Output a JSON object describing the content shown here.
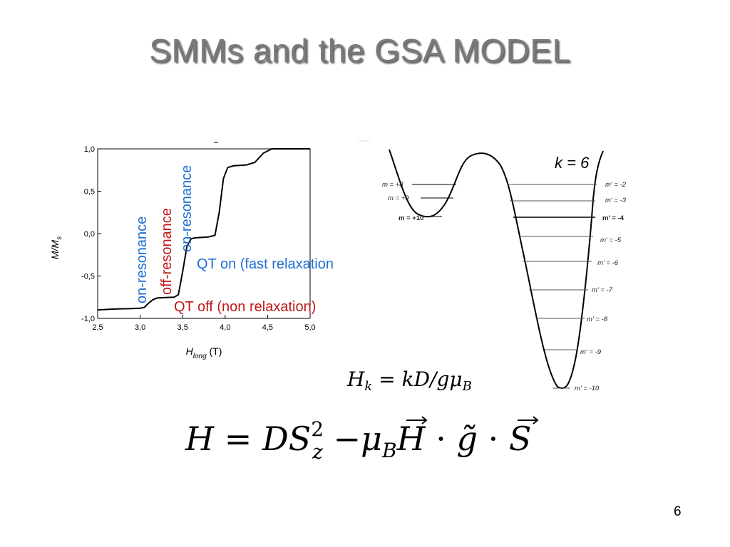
{
  "slide": {
    "title": "SMMs and the GSA MODEL",
    "page_number": "6"
  },
  "magnetization_chart": {
    "y_label_main": "M/M",
    "y_label_sub": "s",
    "x_label_main": "H",
    "x_label_sub": "long",
    "x_label_unit": " (T)",
    "annotations": {
      "on_resonance_1": "on-resonance",
      "off_resonance": "off-resonance",
      "on_resonance_2": "on-resonance",
      "qt_on": "QT on (fast relaxation",
      "qt_off": "QT off (non relaxation)"
    },
    "colors": {
      "on": "#1f6fd1",
      "off": "#c01818",
      "curve": "#000000"
    }
  },
  "chart_data": {
    "type": "line",
    "title": "",
    "xlabel": "H_long (T)",
    "ylabel": "M/M_s",
    "xlim": [
      2.5,
      5.0
    ],
    "ylim": [
      -1.0,
      1.0
    ],
    "x_ticks": [
      "2,5",
      "3,0",
      "3,5",
      "4,0",
      "4,5",
      "5,0"
    ],
    "y_ticks": [
      "-1,0",
      "-0,5",
      "0,0",
      "0,5",
      "1,0"
    ],
    "series": [
      {
        "points": [
          [
            2.5,
            -0.9
          ],
          [
            2.7,
            -0.89
          ],
          [
            2.9,
            -0.885
          ],
          [
            3.0,
            -0.88
          ],
          [
            3.05,
            -0.87
          ],
          [
            3.1,
            -0.82
          ],
          [
            3.15,
            -0.78
          ],
          [
            3.2,
            -0.76
          ],
          [
            3.3,
            -0.755
          ],
          [
            3.4,
            -0.75
          ],
          [
            3.45,
            -0.72
          ],
          [
            3.5,
            -0.45
          ],
          [
            3.55,
            -0.15
          ],
          [
            3.6,
            -0.06
          ],
          [
            3.65,
            -0.05
          ],
          [
            3.8,
            -0.04
          ],
          [
            3.88,
            -0.02
          ],
          [
            3.93,
            0.25
          ],
          [
            3.98,
            0.65
          ],
          [
            4.03,
            0.78
          ],
          [
            4.1,
            0.8
          ],
          [
            4.25,
            0.81
          ],
          [
            4.35,
            0.84
          ],
          [
            4.45,
            0.95
          ],
          [
            4.55,
            1.0
          ],
          [
            5.0,
            1.0
          ]
        ]
      }
    ]
  },
  "energy_diagram": {
    "k_label": "k = 6",
    "left_levels": [
      "m = +8",
      "m = +9",
      "m = +10"
    ],
    "right_levels": [
      "m' = -2",
      "m' = -3",
      "m' = -4",
      "m' = -5",
      "m' = -6",
      "m' = -7",
      "m' = -8",
      "m' = -9",
      "m' = -10"
    ]
  },
  "equations": {
    "hk_H": "H",
    "hk_sub": "k",
    "hk_rest": " = kD/gμ",
    "hk_B": "B",
    "h_main": "H = DS",
    "h_sup": "2",
    "h_sub": "z",
    "h_mu": " −μ",
    "h_B": "B",
    "h_H": "H",
    "h_dot1": " · ",
    "h_g": "g̃",
    "h_dot2": " · ",
    "h_S": "S"
  }
}
